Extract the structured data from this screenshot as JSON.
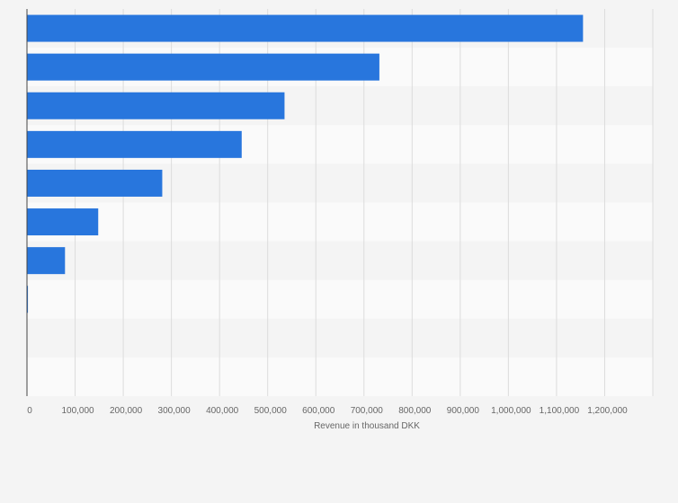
{
  "chart_data": {
    "type": "bar",
    "orientation": "horizontal",
    "categories": [
      "",
      "",
      "",
      "",
      "",
      "",
      "",
      "",
      "",
      ""
    ],
    "values": [
      1155000,
      732000,
      535000,
      446000,
      281000,
      148000,
      79000,
      2000,
      0,
      0
    ],
    "title": "",
    "xlabel": "Revenue in thousand DKK",
    "ylabel": "",
    "xlim": [
      0,
      1300000
    ],
    "x_ticks": [
      "0",
      "100,000",
      "200,000",
      "300,000",
      "400,000",
      "500,000",
      "600,000",
      "700,000",
      "800,000",
      "900,000",
      "1,000,000",
      "1,100,000",
      "1,200,000"
    ],
    "grid": "vertical",
    "legend": "none",
    "bar_color": "#2876dd",
    "band_colors": [
      "#f4f4f4",
      "#fafafa"
    ]
  }
}
